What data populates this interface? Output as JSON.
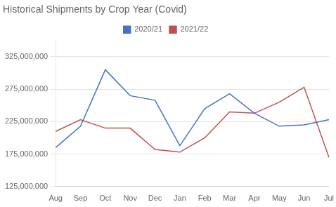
{
  "chart_data": {
    "type": "line",
    "title": "Historical Shipments by Crop Year (Covid)",
    "categories": [
      "Aug",
      "Sep",
      "Oct",
      "Nov",
      "Dec",
      "Jan",
      "Feb",
      "Mar",
      "Apr",
      "May",
      "Jun",
      "Jul"
    ],
    "series": [
      {
        "name": "2020/21",
        "color": "#4472C4",
        "values": [
          185000000,
          218000000,
          305000000,
          265000000,
          258000000,
          188000000,
          245000000,
          268000000,
          238000000,
          218000000,
          220000000,
          228000000
        ]
      },
      {
        "name": "2021/22",
        "color": "#C0504D",
        "values": [
          210000000,
          228000000,
          215000000,
          215000000,
          182000000,
          178000000,
          200000000,
          240000000,
          238000000,
          255000000,
          278000000,
          170000000
        ]
      }
    ],
    "ylim": [
      125000000,
      350000000
    ],
    "yticks": [
      {
        "value": 125000000,
        "label": "125,000,000"
      },
      {
        "value": 175000000,
        "label": "175,000,000"
      },
      {
        "value": 225000000,
        "label": "225,000,000"
      },
      {
        "value": 275000000,
        "label": "275,000,000"
      },
      {
        "value": 325000000,
        "label": "325,000,000"
      }
    ],
    "grid": true,
    "legend": "top"
  }
}
